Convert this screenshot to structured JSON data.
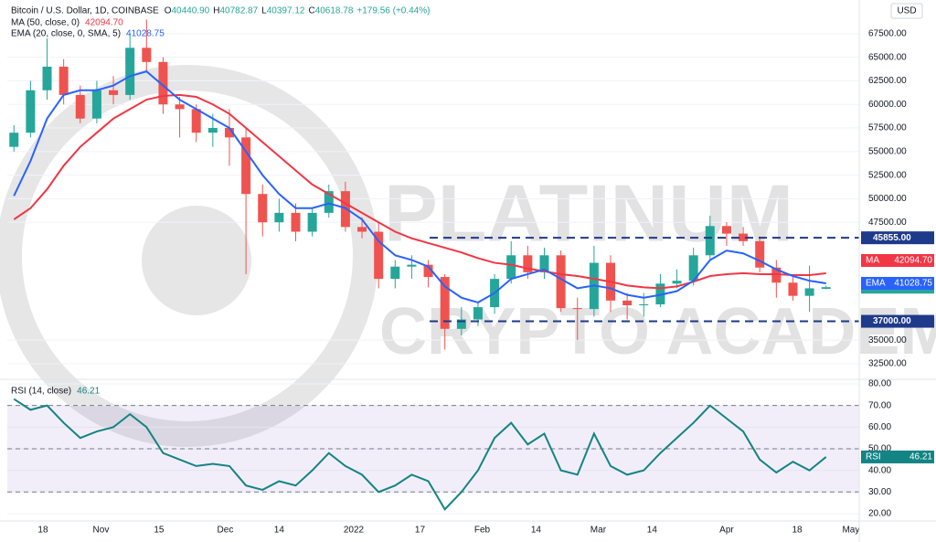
{
  "header": {
    "symbol": "Bitcoin / U.S. Dollar, 1D, COINBASE",
    "ohlc": [
      {
        "k": "O",
        "v": "40440.90"
      },
      {
        "k": "H",
        "v": "40782.87"
      },
      {
        "k": "L",
        "v": "40397.12"
      },
      {
        "k": "C",
        "v": "40618.78"
      }
    ],
    "change": "+179.56 (+0.44%)",
    "currency": "USD"
  },
  "watermark": [
    "PLATINUM",
    "CRYPTO ACADEMY"
  ],
  "chart_data": [
    {
      "type": "candlestick",
      "up_color": "#26a69a",
      "down_color": "#ef5350",
      "categories": [
        null,
        null,
        null,
        null,
        null,
        null,
        null,
        null,
        null,
        null,
        null,
        null,
        null,
        null,
        null,
        null,
        null,
        null,
        null,
        null,
        null,
        null,
        null,
        null,
        null,
        null,
        null,
        null,
        null,
        null,
        null,
        null,
        null,
        null,
        null,
        null,
        null,
        null,
        null,
        null,
        null,
        null,
        null,
        null,
        null,
        null,
        null,
        null,
        null,
        null
      ],
      "open": [
        55500,
        57000,
        61500,
        64000,
        61000,
        58500,
        61500,
        61000,
        66000,
        64500,
        60000,
        59500,
        57000,
        57500,
        56500,
        50500,
        47500,
        48500,
        46500,
        48500,
        50800,
        47000,
        46500,
        41500,
        42800,
        43000,
        41700,
        36200,
        37200,
        38500,
        41500,
        44000,
        42200,
        44000,
        38400,
        38300,
        43200,
        39200,
        38700,
        38800,
        41000,
        41300,
        44000,
        47100,
        46300,
        45500,
        42700,
        41100,
        39700,
        40440.9
      ],
      "high": [
        57800,
        62500,
        67000,
        64800,
        62000,
        62500,
        63000,
        67500,
        69000,
        65000,
        60800,
        60000,
        59000,
        59500,
        57500,
        51500,
        50000,
        49500,
        49000,
        51500,
        51800,
        48000,
        47500,
        43500,
        44000,
        43500,
        42000,
        38500,
        39000,
        42000,
        45500,
        45000,
        44800,
        44500,
        39500,
        45000,
        44000,
        40000,
        40000,
        42000,
        42500,
        44800,
        48200,
        47500,
        47000,
        46000,
        43500,
        42000,
        42900,
        40782.87
      ],
      "low": [
        55000,
        56500,
        60500,
        60000,
        58000,
        58000,
        60000,
        60500,
        63500,
        59000,
        56500,
        56000,
        55500,
        53500,
        42000,
        46000,
        46500,
        45500,
        46000,
        48000,
        46500,
        45800,
        40500,
        40500,
        41500,
        40600,
        34000,
        35500,
        36500,
        37800,
        41000,
        41500,
        41500,
        38000,
        35000,
        37500,
        38000,
        37200,
        37500,
        38500,
        40500,
        40800,
        43500,
        45000,
        45000,
        42200,
        39500,
        39200,
        38000,
        40397.12
      ],
      "close": [
        57000,
        61500,
        64000,
        61000,
        58500,
        61500,
        61000,
        66000,
        64500,
        60000,
        59500,
        57000,
        57500,
        56500,
        50500,
        47500,
        48500,
        46500,
        48500,
        50800,
        47000,
        46500,
        41500,
        42800,
        43000,
        41700,
        36200,
        37200,
        38500,
        41500,
        44000,
        42200,
        44000,
        38400,
        38300,
        43200,
        39200,
        38700,
        38800,
        41000,
        41300,
        44000,
        47100,
        46300,
        45500,
        42700,
        41100,
        39700,
        40500,
        40618.78
      ],
      "close_label": "40618.78",
      "series": [
        {
          "name": "MA (50, close, 0)",
          "tag": "MA",
          "legend_value": "42094.70",
          "color": "#f23645",
          "values": [
            47800,
            49000,
            51000,
            53500,
            55500,
            57000,
            58500,
            59500,
            60500,
            60900,
            61000,
            60800,
            60000,
            59000,
            57500,
            56000,
            54500,
            53000,
            51500,
            50500,
            49500,
            48500,
            47500,
            46500,
            45800,
            45300,
            44800,
            44300,
            43700,
            43200,
            43000,
            42600,
            42300,
            42000,
            41800,
            41500,
            41200,
            40800,
            40600,
            40500,
            40700,
            41200,
            41800,
            42000,
            42100,
            42000,
            42000,
            41900,
            41900,
            42094.7
          ]
        },
        {
          "name": "EMA (20, close, 0, SMA, 5)",
          "tag": "EMA",
          "legend_value": "41028.75",
          "color": "#2962ff",
          "values": [
            50300,
            54000,
            58500,
            61000,
            61500,
            61500,
            62000,
            63000,
            63500,
            62000,
            60500,
            59500,
            58500,
            57500,
            55000,
            52500,
            50500,
            49000,
            49000,
            49500,
            49000,
            47800,
            45500,
            44000,
            43500,
            42800,
            40700,
            39500,
            39000,
            40000,
            41500,
            42000,
            42500,
            41500,
            40500,
            40800,
            40500,
            39800,
            39500,
            39800,
            40200,
            41300,
            43500,
            44500,
            44200,
            43400,
            42500,
            41800,
            41300,
            41028.75
          ]
        }
      ],
      "levels": [
        {
          "value": 45855,
          "label": "45855.00"
        },
        {
          "value": 37000,
          "label": "37000.00"
        }
      ],
      "level_color": "#1e3a8a",
      "ylim": [
        30850,
        71070
      ],
      "yticks": [
        {
          "value": 67500,
          "label": "67500.00"
        },
        {
          "value": 65000,
          "label": "65000.00"
        },
        {
          "value": 62500,
          "label": "62500.00"
        },
        {
          "value": 60000,
          "label": "60000.00"
        },
        {
          "value": 57500,
          "label": "57500.00"
        },
        {
          "value": 55000,
          "label": "55000.00"
        },
        {
          "value": 52500,
          "label": "52500.00"
        },
        {
          "value": 50000,
          "label": "50000.00"
        },
        {
          "value": 47500,
          "label": "47500.00"
        },
        {
          "value": 35000,
          "label": "35000.00"
        },
        {
          "value": 32500,
          "label": "32500.00"
        }
      ],
      "xlim": [
        -0.4,
        51
      ],
      "xticks": [
        {
          "value": 1.75,
          "label": "18"
        },
        {
          "value": 5.25,
          "label": "Nov"
        },
        {
          "value": 8.75,
          "label": "15"
        },
        {
          "value": 12.75,
          "label": "Dec"
        },
        {
          "value": 16,
          "label": "14"
        },
        {
          "value": 20.5,
          "label": "2022"
        },
        {
          "value": 24.5,
          "label": "17"
        },
        {
          "value": 28.25,
          "label": "Feb"
        },
        {
          "value": 31.5,
          "label": "14"
        },
        {
          "value": 35.25,
          "label": "Mar"
        },
        {
          "value": 38.5,
          "label": "14"
        },
        {
          "value": 43,
          "label": "Apr"
        },
        {
          "value": 47.25,
          "label": "18"
        },
        {
          "value": 50.5,
          "label": "May"
        }
      ]
    },
    {
      "type": "line",
      "band": [
        30,
        70
      ],
      "band_color": "#7e57c2",
      "midline": 50,
      "series": [
        {
          "name": "RSI (14, close)",
          "tag": "RSI",
          "legend_value": "46.21",
          "color": "#138484",
          "values": [
            73,
            68,
            70,
            62,
            55,
            58,
            60,
            66,
            60,
            48,
            45,
            42,
            43,
            42,
            33,
            31,
            35,
            33,
            40,
            48,
            42,
            38,
            30,
            33,
            38,
            35,
            22,
            30,
            40,
            55,
            62,
            52,
            57,
            40,
            38,
            57,
            42,
            38,
            40,
            48,
            55,
            62,
            70,
            64,
            58,
            45,
            39,
            44,
            40,
            46.21
          ]
        }
      ],
      "ylim": [
        16.6,
        80.85
      ],
      "yticks": [
        {
          "value": 80,
          "label": "80.00"
        },
        {
          "value": 70,
          "label": "70.00"
        },
        {
          "value": 60,
          "label": "60.00"
        },
        {
          "value": 50,
          "label": "50.00"
        },
        {
          "value": 40,
          "label": "40.00"
        },
        {
          "value": 30,
          "label": "30.00"
        },
        {
          "value": 20,
          "label": "20.00"
        }
      ],
      "xlim": [
        -0.4,
        51
      ]
    }
  ]
}
